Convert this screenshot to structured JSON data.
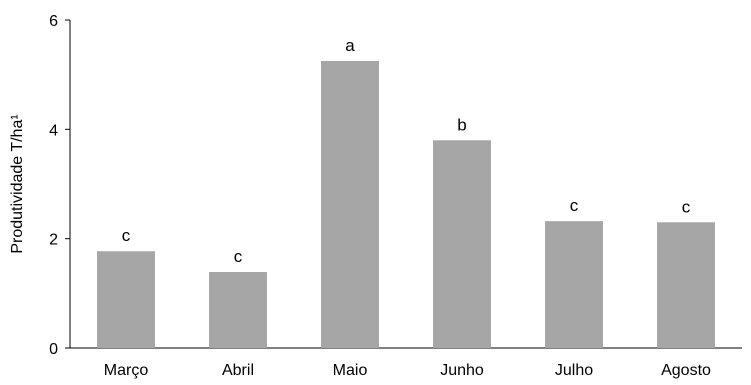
{
  "chart_data": {
    "type": "bar",
    "title": "",
    "xlabel": "",
    "ylabel": "Produtividade T/ha¹",
    "ylim": [
      0,
      6
    ],
    "yticks": [
      0,
      2,
      4,
      6
    ],
    "categories": [
      "Março",
      "Abril",
      "Maio",
      "Junho",
      "Julho",
      "Agosto"
    ],
    "values": [
      1.77,
      1.39,
      5.25,
      3.8,
      2.32,
      2.3
    ],
    "significance_labels": [
      "c",
      "c",
      "a",
      "b",
      "c",
      "c"
    ],
    "bar_color": "#a6a6a6",
    "grid": false,
    "legend": "none"
  }
}
